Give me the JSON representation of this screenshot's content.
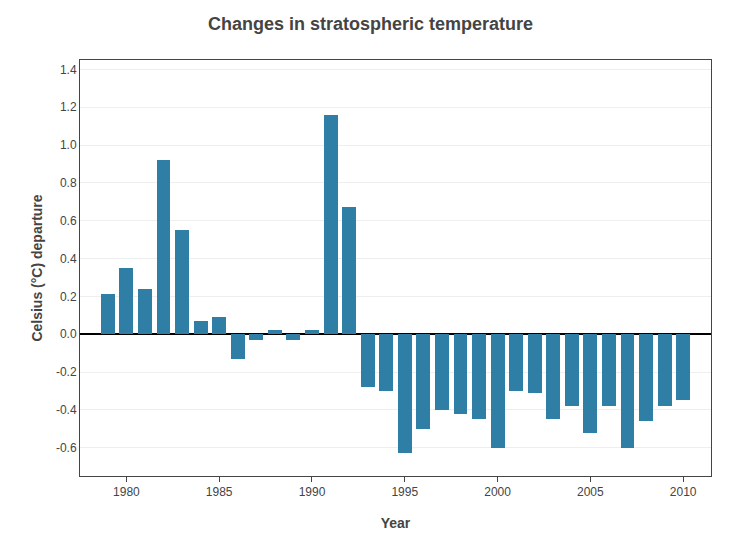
{
  "chart_data": {
    "type": "bar",
    "title": "Changes in stratospheric temperature",
    "xlabel": "Year",
    "ylabel": "Celsius (°C) departure",
    "x": [
      1979,
      1980,
      1981,
      1982,
      1983,
      1984,
      1985,
      1986,
      1987,
      1988,
      1989,
      1990,
      1991,
      1992,
      1993,
      1994,
      1995,
      1996,
      1997,
      1998,
      1999,
      2000,
      2001,
      2002,
      2003,
      2004,
      2005,
      2006,
      2007,
      2008,
      2009,
      2010
    ],
    "values": [
      0.21,
      0.35,
      0.24,
      0.92,
      0.55,
      0.07,
      0.09,
      -0.13,
      -0.03,
      0.02,
      -0.03,
      0.02,
      1.16,
      0.67,
      -0.28,
      -0.3,
      -0.63,
      -0.5,
      -0.4,
      -0.42,
      -0.45,
      -0.6,
      -0.3,
      -0.31,
      -0.45,
      -0.38,
      -0.52,
      -0.38,
      -0.6,
      -0.46,
      -0.38,
      -0.35
    ],
    "color": "#2E7EA6",
    "xlim": [
      1977.5,
      2011.5
    ],
    "xticks": [
      1980,
      1985,
      1990,
      1995,
      2000,
      2005,
      2010
    ],
    "ylim": [
      -0.75,
      1.45
    ],
    "yticks": [
      -0.6,
      -0.4,
      -0.2,
      {
        "value": 0.0,
        "label": "0.0"
      },
      0.2,
      0.4,
      0.6,
      0.8,
      {
        "value": 1.0,
        "label": "1.0"
      },
      1.2,
      1.4
    ],
    "grid": true
  }
}
